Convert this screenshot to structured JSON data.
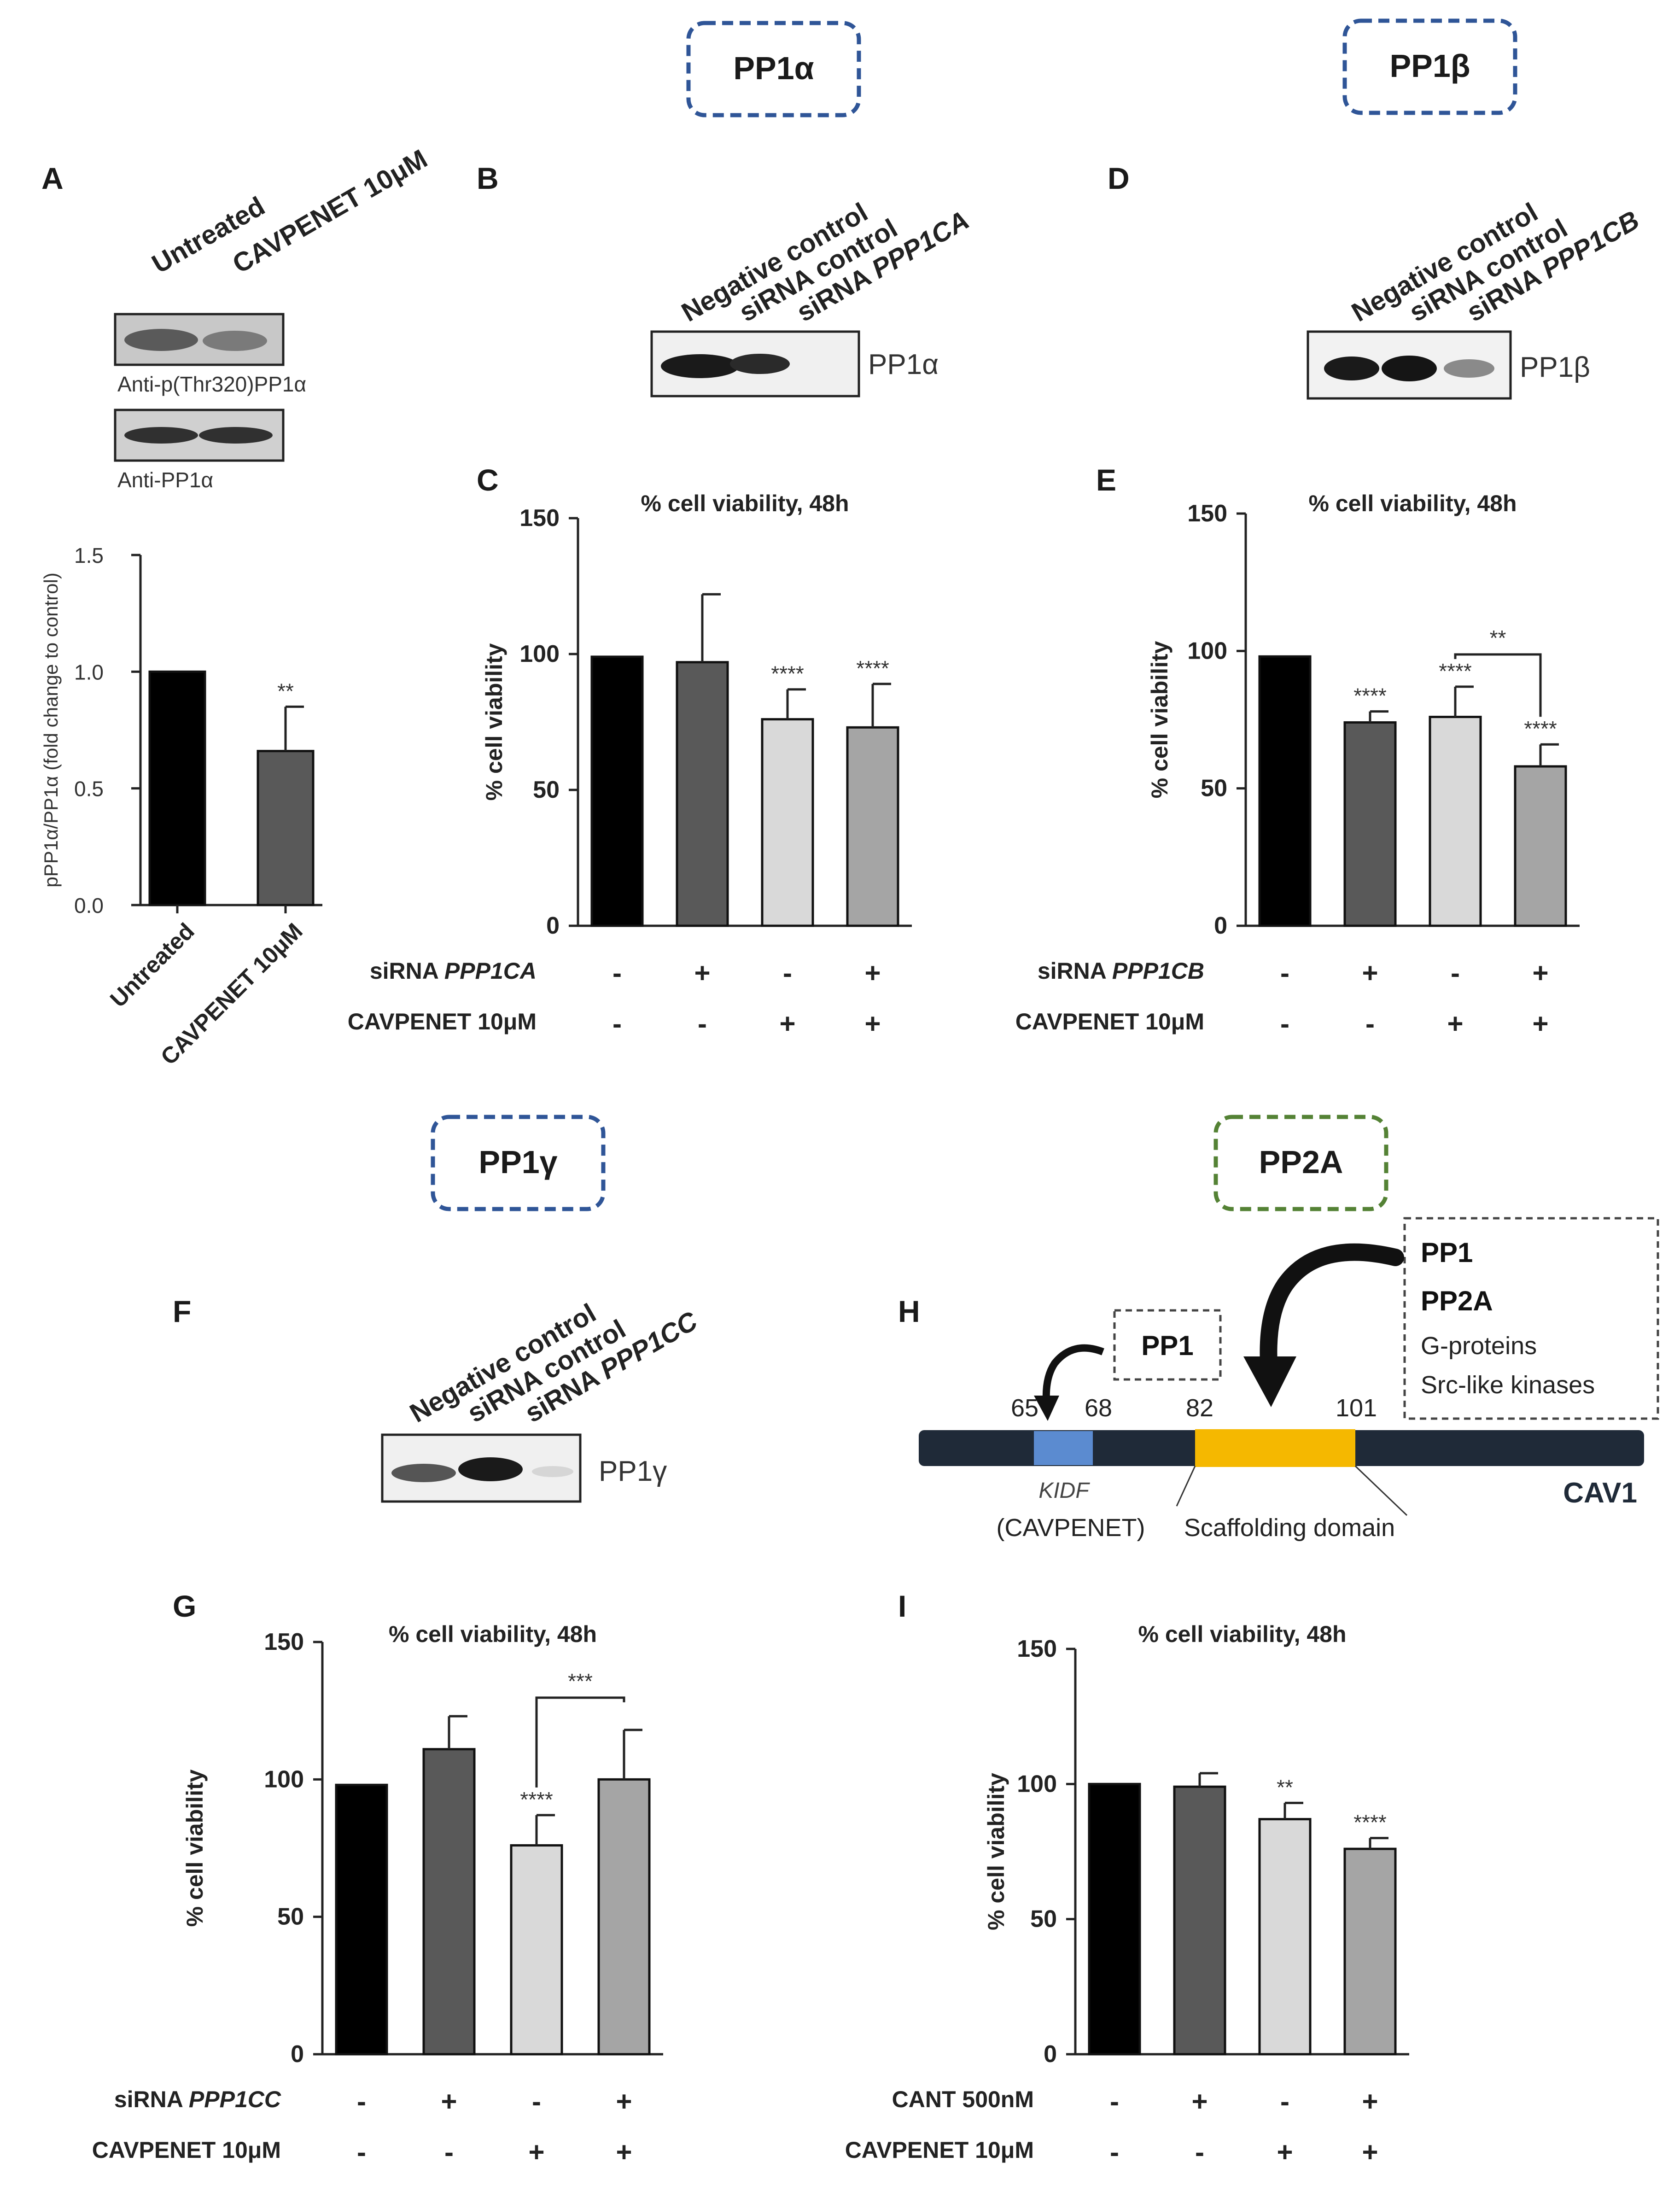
{
  "header_boxes": {
    "pp1a": "PP1α",
    "pp1b": "PP1β",
    "pp1g": "PP1γ",
    "pp2a": "PP2A"
  },
  "panel_letters": {
    "A": "A",
    "B": "B",
    "C": "C",
    "D": "D",
    "E": "E",
    "F": "F",
    "G": "G",
    "H": "H",
    "I": "I"
  },
  "colors": {
    "blue_box": "#2f5597",
    "green_box": "#548235",
    "black": "#000000",
    "dark_grey": "#595959",
    "light_grey": "#d9d9d9",
    "mid_grey": "#a5a5a5",
    "kidf_blue": "#5b8bd0",
    "scaffold_yellow": "#f5b800",
    "cav1_bar": "#1f2a38"
  },
  "blot_A": {
    "lanes": [
      "Untreated",
      "CAVPENET 10μM"
    ],
    "antibody1": "Anti-p(Thr320)PP1α",
    "antibody2": "Anti-PP1α"
  },
  "blot_B": {
    "lanes": [
      "Negative control",
      "siRNA control",
      "siRNA "
    ],
    "gene": "PPP1CA",
    "protein": "PP1α"
  },
  "blot_D": {
    "lanes": [
      "Negative control",
      "siRNA control",
      "siRNA "
    ],
    "gene": "PPP1CB",
    "protein": "PP1β"
  },
  "blot_F": {
    "lanes": [
      "Negative control",
      "siRNA control",
      "siRNA "
    ],
    "gene": "PPP1CC",
    "protein": "PP1γ"
  },
  "chart_data": [
    {
      "id": "A",
      "type": "bar",
      "title": "",
      "ylabel": "pPP1α/PP1α (fold change to control)",
      "ylim": [
        0,
        1.5
      ],
      "yticks": [
        "0.0",
        "0.5",
        "1.0",
        "1.5"
      ],
      "categories": [
        "Untreated",
        "CAVPENET 10μM"
      ],
      "values": [
        1.0,
        0.66
      ],
      "errors": [
        0,
        0.19
      ],
      "significance": [
        "",
        "**"
      ]
    },
    {
      "id": "C",
      "type": "bar",
      "title": "% cell viability, 48h",
      "ylabel": "% cell viability",
      "ylim": [
        0,
        150
      ],
      "yticks": [
        "0",
        "50",
        "100",
        "150"
      ],
      "values": [
        99,
        97,
        76,
        73
      ],
      "errors": [
        0,
        25,
        11,
        16
      ],
      "significance": [
        "",
        "",
        "****",
        "****"
      ],
      "conditions": [
        {
          "label": "siRNA ",
          "italic": "PPP1CA",
          "signs": [
            "-",
            "+",
            "-",
            "+"
          ]
        },
        {
          "label": "CAVPENET 10μM",
          "italic": "",
          "signs": [
            "-",
            "-",
            "+",
            "+"
          ]
        }
      ]
    },
    {
      "id": "E",
      "type": "bar",
      "title": "% cell viability, 48h",
      "ylabel": "% cell viability",
      "ylim": [
        0,
        150
      ],
      "yticks": [
        "0",
        "50",
        "100",
        "150"
      ],
      "values": [
        98,
        74,
        76,
        58
      ],
      "errors": [
        0,
        4,
        11,
        8
      ],
      "significance": [
        "",
        "****",
        "****",
        "****"
      ],
      "bracket": {
        "from": 2,
        "to": 3,
        "label": "**"
      },
      "conditions": [
        {
          "label": "siRNA ",
          "italic": "PPP1CB",
          "signs": [
            "-",
            "+",
            "-",
            "+"
          ]
        },
        {
          "label": "CAVPENET 10μM",
          "italic": "",
          "signs": [
            "-",
            "-",
            "+",
            "+"
          ]
        }
      ]
    },
    {
      "id": "G",
      "type": "bar",
      "title": "% cell viability, 48h",
      "ylabel": "% cell viability",
      "ylim": [
        0,
        150
      ],
      "yticks": [
        "0",
        "50",
        "100",
        "150"
      ],
      "values": [
        98,
        111,
        76,
        100
      ],
      "errors": [
        0,
        12,
        11,
        18
      ],
      "significance": [
        "",
        "",
        "****",
        ""
      ],
      "bracket": {
        "from": 2,
        "to": 3,
        "label": "***"
      },
      "conditions": [
        {
          "label": "siRNA ",
          "italic": "PPP1CC",
          "signs": [
            "-",
            "+",
            "-",
            "+"
          ]
        },
        {
          "label": "CAVPENET 10μM",
          "italic": "",
          "signs": [
            "-",
            "-",
            "+",
            "+"
          ]
        }
      ]
    },
    {
      "id": "I",
      "type": "bar",
      "title": "% cell viability, 48h",
      "ylabel": "% cell viability",
      "ylim": [
        0,
        150
      ],
      "yticks": [
        "0",
        "50",
        "100",
        "150"
      ],
      "values": [
        100,
        99,
        87,
        76
      ],
      "errors": [
        0,
        5,
        6,
        4
      ],
      "significance": [
        "",
        "",
        "**",
        "****"
      ],
      "conditions": [
        {
          "label": "CANT 500nM",
          "italic": "",
          "signs": [
            "-",
            "+",
            "-",
            "+"
          ]
        },
        {
          "label": "CAVPENET 10μM",
          "italic": "",
          "signs": [
            "-",
            "-",
            "+",
            "+"
          ]
        }
      ]
    }
  ],
  "diagram_H": {
    "pp1_box": "PP1",
    "right_box": [
      "PP1",
      "PP2A",
      "G-proteins",
      "Src-like kinases"
    ],
    "positions": [
      "65",
      "68",
      "82",
      "101"
    ],
    "kidf": "KIDF",
    "cavpenet": "(CAVPENET)",
    "scaffold": "Scaffolding domain",
    "cav1": "CAV1"
  }
}
